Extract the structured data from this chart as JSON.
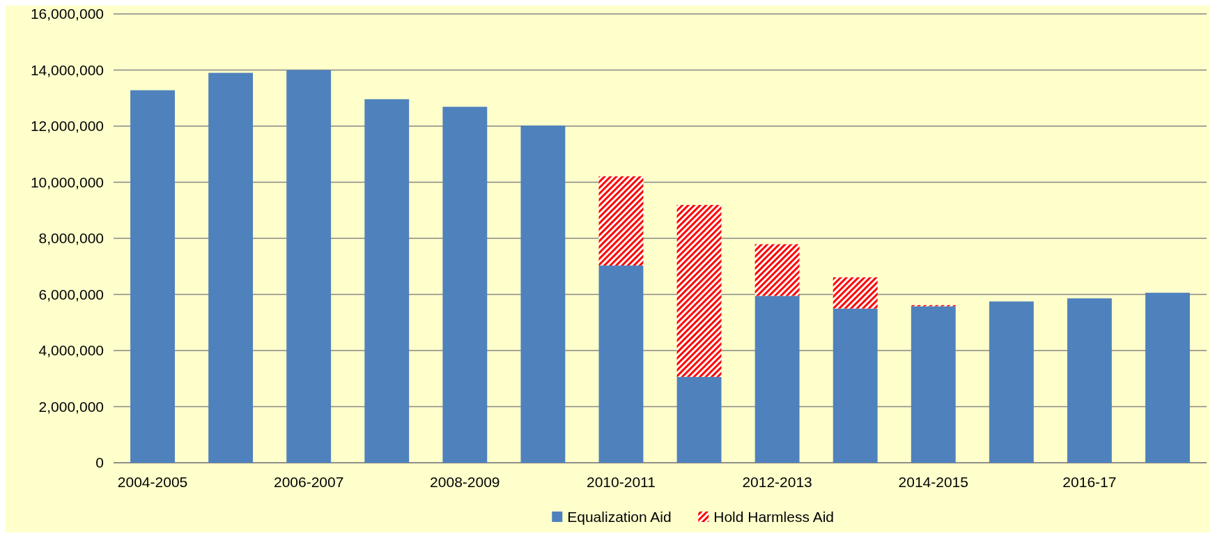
{
  "chart_data": {
    "type": "bar",
    "stacked": true,
    "categories": [
      "2004-2005",
      null,
      "2006-2007",
      null,
      "2008-2009",
      null,
      "2010-2011",
      null,
      "2012-2013",
      null,
      "2014-2015",
      null,
      "2016-17",
      null
    ],
    "series": [
      {
        "name": "Equalization Aid",
        "color": "#4f81bd",
        "values": [
          13280000,
          13900000,
          14000000,
          12960000,
          12690000,
          12020000,
          7030000,
          3060000,
          5950000,
          5500000,
          5580000,
          5750000,
          5860000,
          6060000
        ]
      },
      {
        "name": "Hold Harmless Aid",
        "color": "#ff0000",
        "values": [
          null,
          null,
          null,
          null,
          null,
          null,
          3180000,
          6130000,
          1840000,
          1110000,
          40000,
          null,
          null,
          null
        ]
      }
    ],
    "ylim": [
      0,
      16000000
    ],
    "yticks": [
      {
        "value": 0,
        "label": "0"
      },
      {
        "value": 2000000,
        "label": "2,000,000"
      },
      {
        "value": 4000000,
        "label": "4,000,000"
      },
      {
        "value": 6000000,
        "label": "6,000,000"
      },
      {
        "value": 8000000,
        "label": "8,000,000"
      },
      {
        "value": 10000000,
        "label": "10,000,000"
      },
      {
        "value": 12000000,
        "label": "12,000,000"
      },
      {
        "value": 14000000,
        "label": "14,000,000"
      },
      {
        "value": 16000000,
        "label": "16,000,000"
      }
    ],
    "grid": "y",
    "legend": "bottom"
  }
}
